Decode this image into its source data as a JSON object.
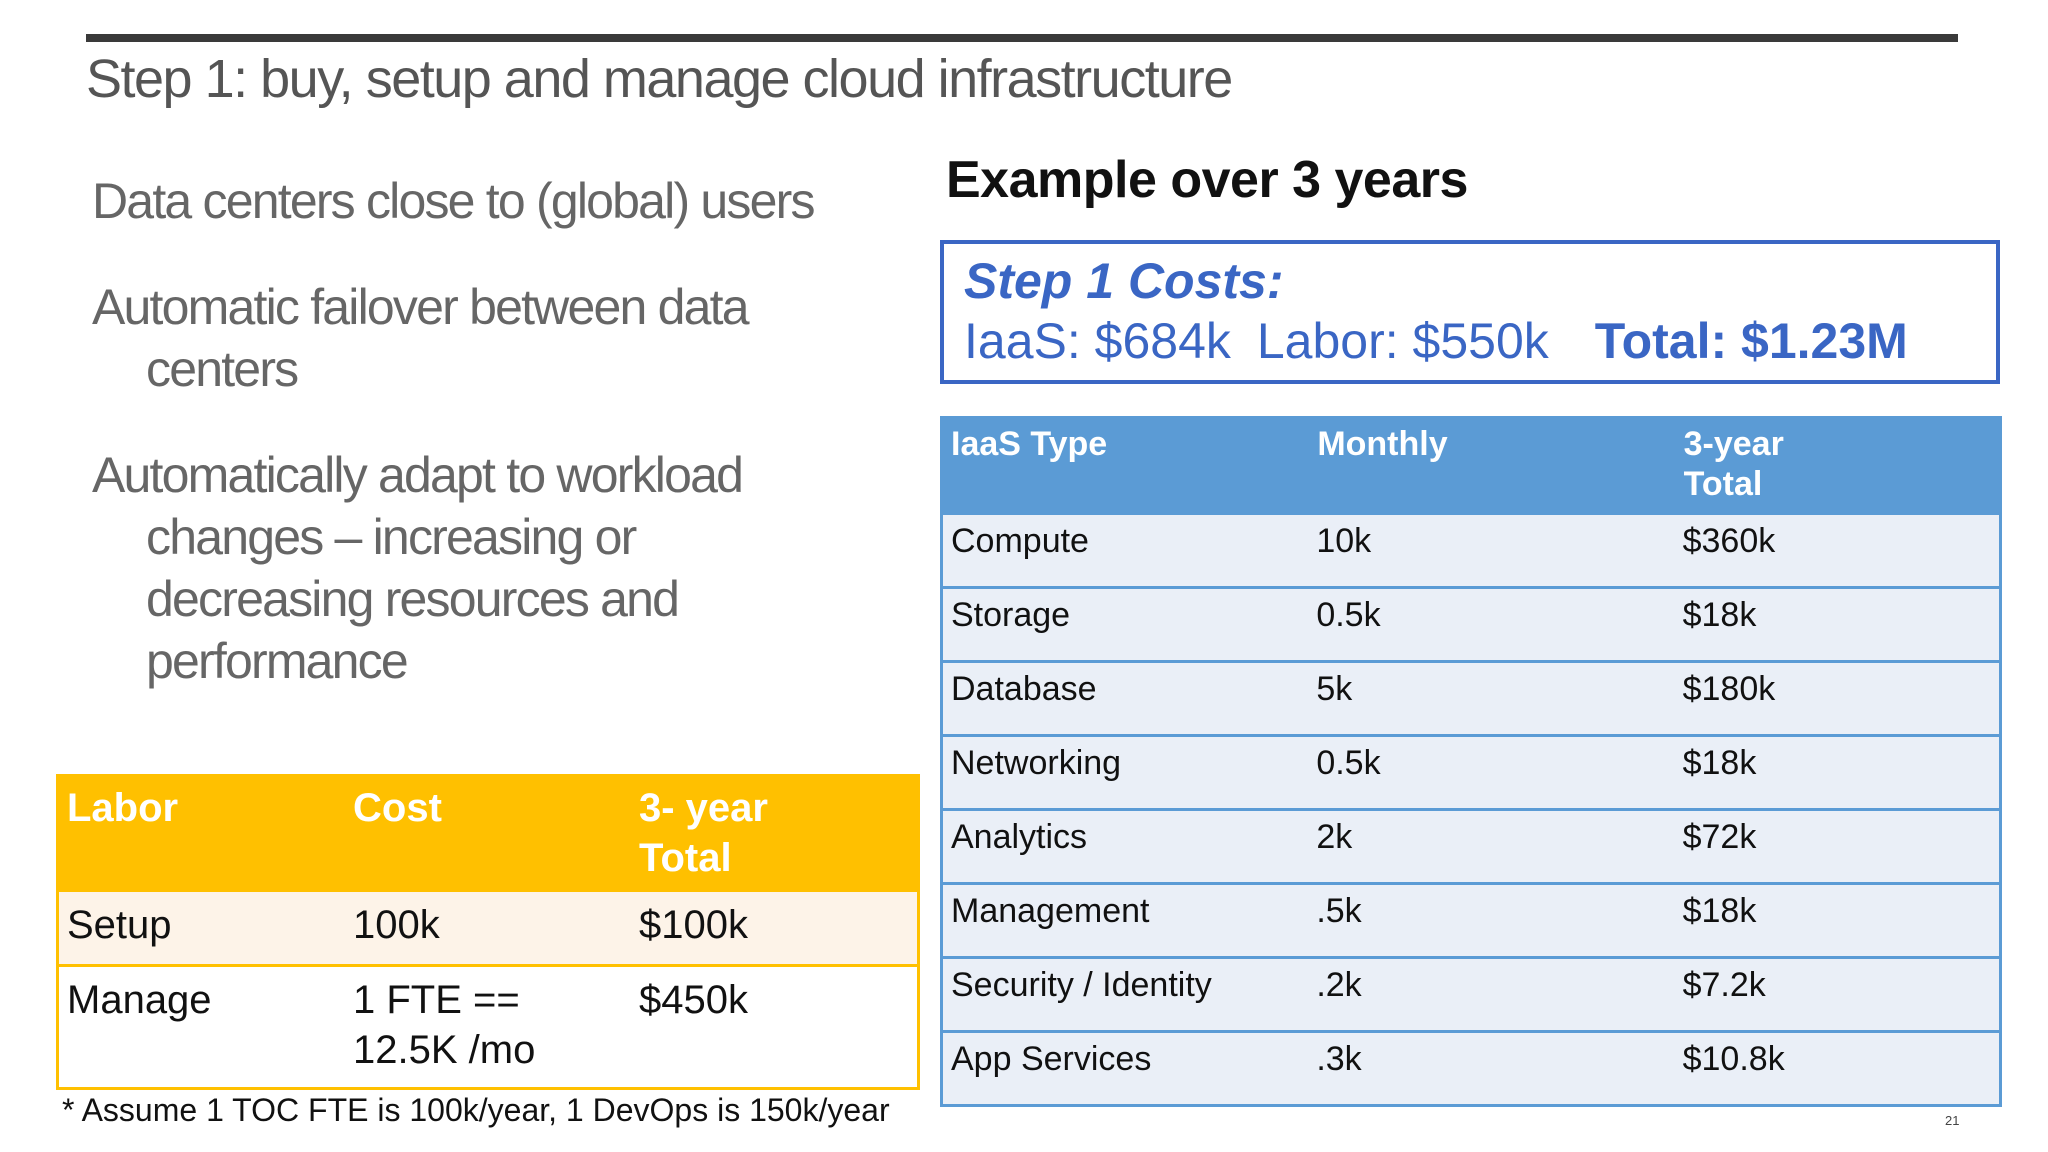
{
  "slide": {
    "title": "Step 1: buy, setup and manage cloud infrastructure",
    "page_number": "21"
  },
  "bullets": [
    {
      "line1": "Data centers close to (global) users",
      "cont": []
    },
    {
      "line1": "Automatic failover between data",
      "cont": [
        "centers"
      ]
    },
    {
      "line1": "Automatically adapt to workload",
      "cont": [
        "changes – increasing or",
        "decreasing resources and",
        "performance"
      ]
    }
  ],
  "example": {
    "heading": "Example over 3 years",
    "box_title": "Step 1 Costs:",
    "iaas": "IaaS:  $684k",
    "labor": "Labor: $550k",
    "total": "Total: $1.23M"
  },
  "iaas_table": {
    "headers": [
      "IaaS Type",
      "Monthly",
      "3-year Total"
    ],
    "rows": [
      [
        "Compute",
        "10k",
        "$360k"
      ],
      [
        "Storage",
        "0.5k",
        "$18k"
      ],
      [
        "Database",
        "5k",
        "$180k"
      ],
      [
        "Networking",
        "0.5k",
        "$18k"
      ],
      [
        "Analytics",
        "2k",
        "$72k"
      ],
      [
        "Management",
        ".5k",
        "$18k"
      ],
      [
        "Security / Identity",
        ".2k",
        "$7.2k"
      ],
      [
        "App Services",
        ".3k",
        "$10.8k"
      ]
    ]
  },
  "labor_table": {
    "headers": [
      "Labor",
      "Cost",
      "3- year Total"
    ],
    "rows": [
      [
        "Setup",
        "100k",
        "$100k"
      ],
      [
        "Manage",
        "1 FTE == 12.5K /mo",
        "$450k"
      ]
    ]
  },
  "footnote": "* Assume 1 TOC FTE is 100k/year, 1 DevOps is 150k/year",
  "colors": {
    "accent_blue": "#3a66c4",
    "table_blue": "#5b9bd5",
    "table_gold": "#ffc000"
  }
}
